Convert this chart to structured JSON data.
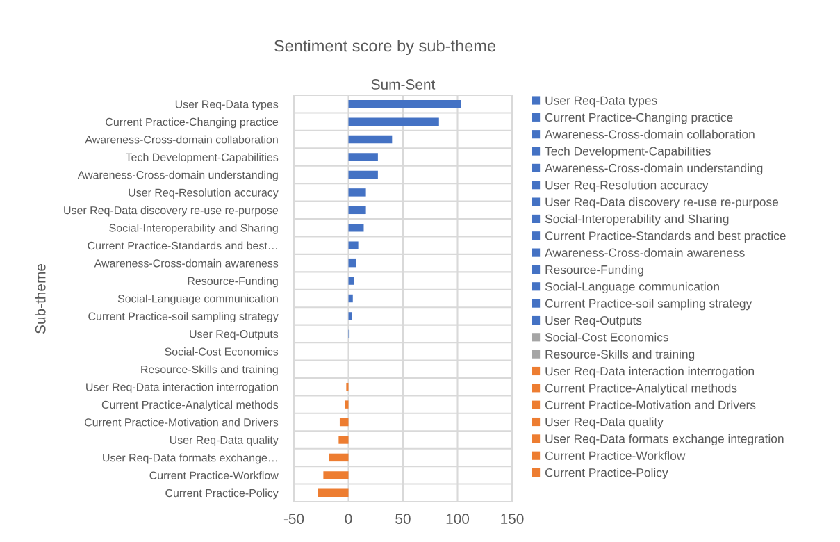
{
  "chart_data": {
    "type": "bar",
    "orientation": "horizontal",
    "title": "Sentiment score by sub-theme",
    "subtitle": "Sum-Sent",
    "ylabel": "Sub-theme",
    "categories": [
      "User Req-Data types",
      "Current Practice-Changing practice",
      "Awareness-Cross-domain collaboration",
      "Tech Development-Capabilities",
      "Awareness-Cross-domain understanding",
      "User Req-Resolution accuracy",
      "User Req-Data discovery re-use re-purpose",
      "Social-Interoperability and Sharing",
      "Current Practice-Standards and best…",
      "Awareness-Cross-domain awareness",
      "Resource-Funding",
      "Social-Language communication",
      "Current Practice-soil sampling strategy",
      "User Req-Outputs",
      "Social-Cost Economics",
      "Resource-Skills and training",
      "User Req-Data interaction interrogation",
      "Current Practice-Analytical methods",
      "Current Practice-Motivation and Drivers",
      "User Req-Data quality",
      "User Req-Data formats exchange…",
      "Current Practice-Workflow",
      "Current Practice-Policy"
    ],
    "series": [
      {
        "name": "User Req-Data types",
        "color": "#4472c4",
        "values": [
          103,
          null,
          null,
          null,
          null,
          null,
          null,
          null,
          null,
          null,
          null,
          null,
          null,
          null,
          null,
          null,
          null,
          null,
          null,
          null,
          null,
          null,
          null
        ]
      },
      {
        "name": "Current Practice-Changing practice",
        "color": "#4472c4",
        "values": [
          null,
          83,
          null,
          null,
          null,
          null,
          null,
          null,
          null,
          null,
          null,
          null,
          null,
          null,
          null,
          null,
          null,
          null,
          null,
          null,
          null,
          null,
          null
        ]
      },
      {
        "name": "Awareness-Cross-domain collaboration",
        "color": "#4472c4",
        "values": [
          null,
          null,
          40,
          null,
          null,
          null,
          null,
          null,
          null,
          null,
          null,
          null,
          null,
          null,
          null,
          null,
          null,
          null,
          null,
          null,
          null,
          null,
          null
        ]
      },
      {
        "name": "Tech Development-Capabilities",
        "color": "#4472c4",
        "values": [
          null,
          null,
          null,
          27,
          null,
          null,
          null,
          null,
          null,
          null,
          null,
          null,
          null,
          null,
          null,
          null,
          null,
          null,
          null,
          null,
          null,
          null,
          null
        ]
      },
      {
        "name": "Awareness-Cross-domain understanding",
        "color": "#4472c4",
        "values": [
          null,
          null,
          null,
          null,
          27,
          null,
          null,
          null,
          null,
          null,
          null,
          null,
          null,
          null,
          null,
          null,
          null,
          null,
          null,
          null,
          null,
          null,
          null
        ]
      },
      {
        "name": "User Req-Resolution accuracy",
        "color": "#4472c4",
        "values": [
          null,
          null,
          null,
          null,
          null,
          16,
          null,
          null,
          null,
          null,
          null,
          null,
          null,
          null,
          null,
          null,
          null,
          null,
          null,
          null,
          null,
          null,
          null
        ]
      },
      {
        "name": "User Req-Data discovery re-use re-purpose",
        "color": "#4472c4",
        "values": [
          null,
          null,
          null,
          null,
          null,
          null,
          16,
          null,
          null,
          null,
          null,
          null,
          null,
          null,
          null,
          null,
          null,
          null,
          null,
          null,
          null,
          null,
          null
        ]
      },
      {
        "name": "Social-Interoperability and Sharing",
        "color": "#4472c4",
        "values": [
          null,
          null,
          null,
          null,
          null,
          null,
          null,
          14,
          null,
          null,
          null,
          null,
          null,
          null,
          null,
          null,
          null,
          null,
          null,
          null,
          null,
          null,
          null
        ]
      },
      {
        "name": "Current Practice-Standards and best practice",
        "color": "#4472c4",
        "values": [
          null,
          null,
          null,
          null,
          null,
          null,
          null,
          null,
          9,
          null,
          null,
          null,
          null,
          null,
          null,
          null,
          null,
          null,
          null,
          null,
          null,
          null,
          null
        ]
      },
      {
        "name": "Awareness-Cross-domain awareness",
        "color": "#4472c4",
        "values": [
          null,
          null,
          null,
          null,
          null,
          null,
          null,
          null,
          null,
          7,
          null,
          null,
          null,
          null,
          null,
          null,
          null,
          null,
          null,
          null,
          null,
          null,
          null
        ]
      },
      {
        "name": "Resource-Funding",
        "color": "#4472c4",
        "values": [
          null,
          null,
          null,
          null,
          null,
          null,
          null,
          null,
          null,
          null,
          5,
          null,
          null,
          null,
          null,
          null,
          null,
          null,
          null,
          null,
          null,
          null,
          null
        ]
      },
      {
        "name": "Social-Language communication",
        "color": "#4472c4",
        "values": [
          null,
          null,
          null,
          null,
          null,
          null,
          null,
          null,
          null,
          null,
          null,
          4,
          null,
          null,
          null,
          null,
          null,
          null,
          null,
          null,
          null,
          null,
          null
        ]
      },
      {
        "name": "Current Practice-soil sampling strategy",
        "color": "#4472c4",
        "values": [
          null,
          null,
          null,
          null,
          null,
          null,
          null,
          null,
          null,
          null,
          null,
          null,
          3,
          null,
          null,
          null,
          null,
          null,
          null,
          null,
          null,
          null,
          null
        ]
      },
      {
        "name": "User Req-Outputs",
        "color": "#4472c4",
        "values": [
          null,
          null,
          null,
          null,
          null,
          null,
          null,
          null,
          null,
          null,
          null,
          null,
          null,
          1,
          null,
          null,
          null,
          null,
          null,
          null,
          null,
          null,
          null
        ]
      },
      {
        "name": "Social-Cost Economics",
        "color": "#a5a5a5",
        "values": [
          null,
          null,
          null,
          null,
          null,
          null,
          null,
          null,
          null,
          null,
          null,
          null,
          null,
          null,
          0,
          null,
          null,
          null,
          null,
          null,
          null,
          null,
          null
        ]
      },
      {
        "name": "Resource-Skills and training",
        "color": "#a5a5a5",
        "values": [
          null,
          null,
          null,
          null,
          null,
          null,
          null,
          null,
          null,
          null,
          null,
          null,
          null,
          null,
          null,
          0,
          null,
          null,
          null,
          null,
          null,
          null,
          null
        ]
      },
      {
        "name": "User Req-Data interaction interrogation",
        "color": "#ed7d31",
        "values": [
          null,
          null,
          null,
          null,
          null,
          null,
          null,
          null,
          null,
          null,
          null,
          null,
          null,
          null,
          null,
          null,
          -2,
          null,
          null,
          null,
          null,
          null,
          null
        ]
      },
      {
        "name": "Current Practice-Analytical methods",
        "color": "#ed7d31",
        "values": [
          null,
          null,
          null,
          null,
          null,
          null,
          null,
          null,
          null,
          null,
          null,
          null,
          null,
          null,
          null,
          null,
          null,
          -3,
          null,
          null,
          null,
          null,
          null
        ]
      },
      {
        "name": "Current Practice-Motivation and Drivers",
        "color": "#ed7d31",
        "values": [
          null,
          null,
          null,
          null,
          null,
          null,
          null,
          null,
          null,
          null,
          null,
          null,
          null,
          null,
          null,
          null,
          null,
          null,
          -8,
          null,
          null,
          null,
          null
        ]
      },
      {
        "name": "User Req-Data quality",
        "color": "#ed7d31",
        "values": [
          null,
          null,
          null,
          null,
          null,
          null,
          null,
          null,
          null,
          null,
          null,
          null,
          null,
          null,
          null,
          null,
          null,
          null,
          null,
          -9,
          null,
          null,
          null
        ]
      },
      {
        "name": "User Req-Data formats exchange integration",
        "color": "#ed7d31",
        "values": [
          null,
          null,
          null,
          null,
          null,
          null,
          null,
          null,
          null,
          null,
          null,
          null,
          null,
          null,
          null,
          null,
          null,
          null,
          null,
          null,
          -18,
          null,
          null
        ]
      },
      {
        "name": "Current Practice-Workflow",
        "color": "#ed7d31",
        "values": [
          null,
          null,
          null,
          null,
          null,
          null,
          null,
          null,
          null,
          null,
          null,
          null,
          null,
          null,
          null,
          null,
          null,
          null,
          null,
          null,
          null,
          -23,
          null
        ]
      },
      {
        "name": "Current Practice-Policy",
        "color": "#ed7d31",
        "values": [
          null,
          null,
          null,
          null,
          null,
          null,
          null,
          null,
          null,
          null,
          null,
          null,
          null,
          null,
          null,
          null,
          null,
          null,
          null,
          null,
          null,
          null,
          -28
        ]
      }
    ],
    "xlim": [
      -50,
      150
    ],
    "xticks": [
      -50,
      0,
      50,
      100,
      150
    ],
    "grid": true,
    "legend": "right"
  }
}
